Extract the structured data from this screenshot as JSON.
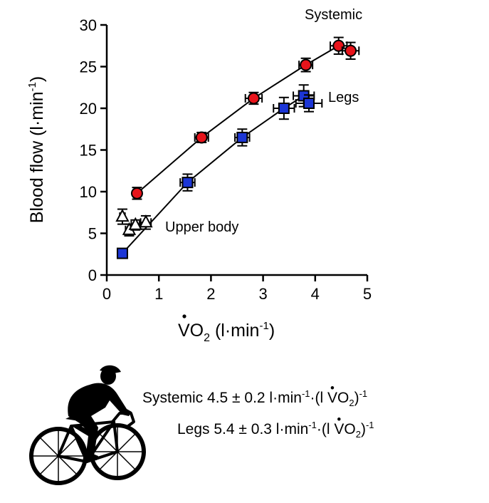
{
  "chart_data": {
    "type": "scatter",
    "xlabel": {
      "main": "VO",
      "sub": "2",
      "unit_pre": " (l·min",
      "unit_sup": "-1",
      "unit_post": ")"
    },
    "ylabel": {
      "main": "Blood flow (l·min",
      "sup": "-1",
      "post": ")"
    },
    "xlim": [
      0,
      5
    ],
    "ylim": [
      0,
      30
    ],
    "x_ticks": [
      0,
      1,
      2,
      3,
      4,
      5
    ],
    "y_ticks": [
      0,
      5,
      10,
      15,
      20,
      25,
      30
    ],
    "grid": false,
    "series": [
      {
        "name": "Systemic",
        "marker": "circle",
        "color": "#e8141b",
        "fit_line": [
          [
            0.58,
            9.8
          ],
          [
            1.82,
            16.5
          ],
          [
            2.82,
            21.2
          ],
          [
            3.82,
            25.2
          ],
          [
            4.45,
            27.5
          ],
          [
            4.68,
            26.9
          ]
        ],
        "points": [
          {
            "x": 0.58,
            "y": 9.8,
            "xerr": 0.07,
            "yerr": 0.7
          },
          {
            "x": 1.82,
            "y": 16.5,
            "xerr": 0.13,
            "yerr": 0.6
          },
          {
            "x": 2.82,
            "y": 21.2,
            "xerr": 0.16,
            "yerr": 0.7
          },
          {
            "x": 3.82,
            "y": 25.2,
            "xerr": 0.13,
            "yerr": 0.8
          },
          {
            "x": 4.45,
            "y": 27.5,
            "xerr": 0.16,
            "yerr": 1.0
          },
          {
            "x": 4.68,
            "y": 26.9,
            "xerr": 0.16,
            "yerr": 1.0
          }
        ]
      },
      {
        "name": "Legs",
        "marker": "square",
        "color": "#1c36d6",
        "fit_line": [
          [
            0.3,
            2.6
          ],
          [
            1.55,
            11.1
          ],
          [
            2.6,
            16.5
          ],
          [
            3.4,
            20.0
          ],
          [
            3.78,
            21.5
          ],
          [
            3.88,
            20.6
          ]
        ],
        "points": [
          {
            "x": 0.3,
            "y": 2.6,
            "xerr": 0.04,
            "yerr": 0.4
          },
          {
            "x": 1.55,
            "y": 11.1,
            "xerr": 0.14,
            "yerr": 1.0
          },
          {
            "x": 2.6,
            "y": 16.5,
            "xerr": 0.14,
            "yerr": 1.0
          },
          {
            "x": 3.4,
            "y": 20.0,
            "xerr": 0.2,
            "yerr": 1.3
          },
          {
            "x": 3.78,
            "y": 21.5,
            "xerr": 0.2,
            "yerr": 1.3
          },
          {
            "x": 3.88,
            "y": 20.6,
            "xerr": 0.25,
            "yerr": 1.0
          }
        ]
      },
      {
        "name": "Upper body",
        "marker": "triangle-open",
        "color": "#000000",
        "points": [
          {
            "x": 0.3,
            "y": 7.0,
            "xerr": 0.05,
            "yerr": 0.9
          },
          {
            "x": 0.43,
            "y": 5.4,
            "xerr": 0.07,
            "yerr": 0.7
          },
          {
            "x": 0.55,
            "y": 6.0,
            "xerr": 0.08,
            "yerr": 0.6
          },
          {
            "x": 0.75,
            "y": 6.3,
            "xerr": 0.1,
            "yerr": 0.8
          }
        ]
      }
    ],
    "annotations": {
      "systemic": "Systemic",
      "legs": "Legs",
      "upper_body": "Upper body"
    }
  },
  "equations": {
    "systemic": {
      "lead": "Systemic 4.5 ± 0.2 l·min",
      "sup1": "-1",
      "mid": "·(l ",
      "vdot": "V",
      "o": "O",
      "sub": "2",
      "close": ")",
      "sup2": "-1"
    },
    "legs": {
      "lead": "Legs 5.4 ± 0.3 l·min",
      "sup1": "-1",
      "mid": "·(l ",
      "vdot": "V",
      "o": "O",
      "sub": "2",
      "close": ")",
      "sup2": "-1"
    }
  },
  "illustration": {
    "icon": "cyclist-silhouette-icon"
  }
}
